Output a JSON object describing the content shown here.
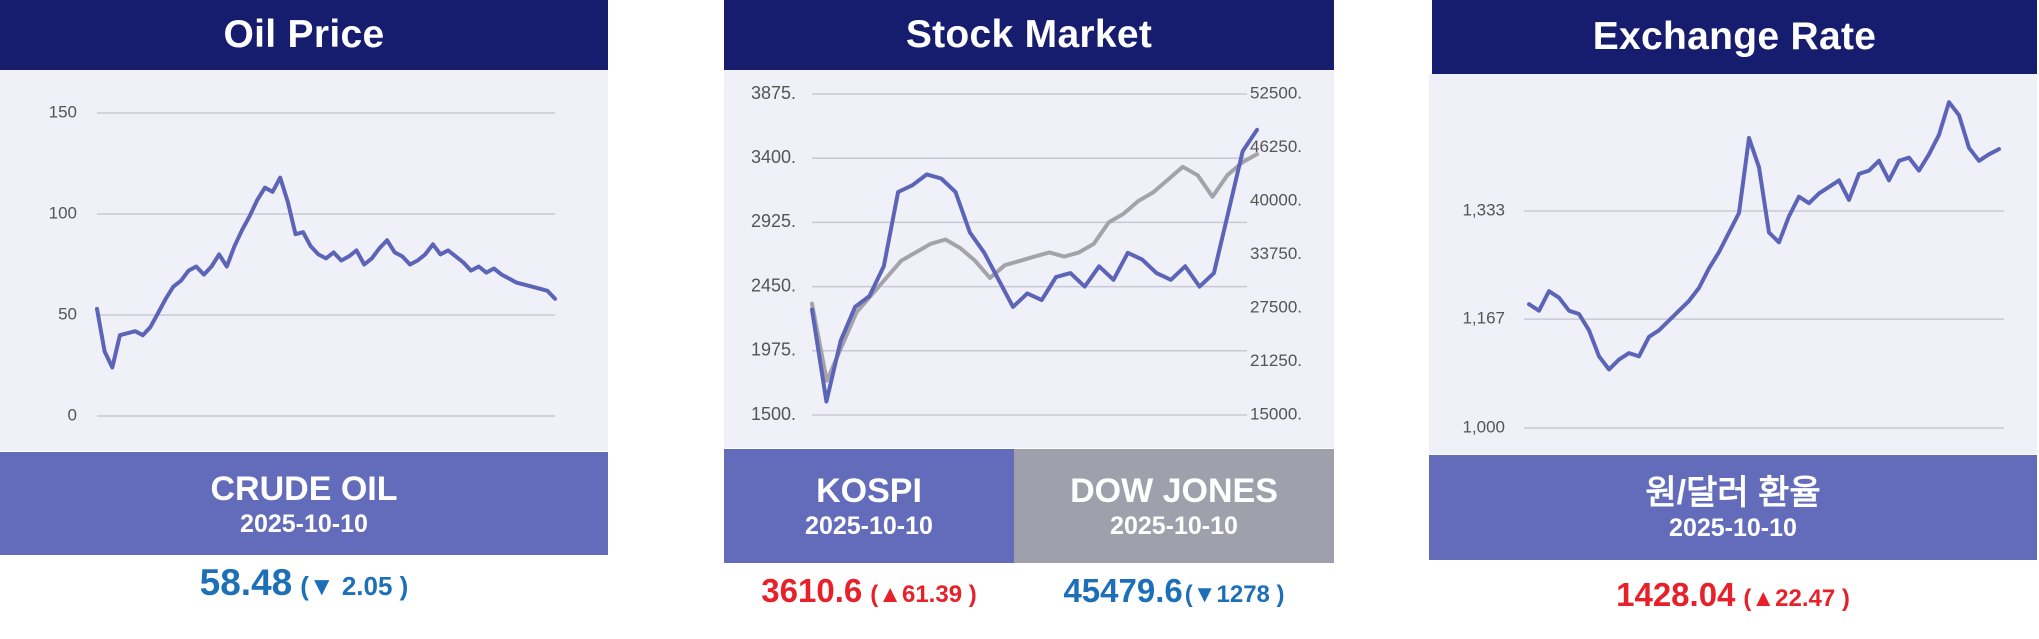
{
  "panels": {
    "oil": {
      "title": "Oil Price",
      "label": "CRUDE OIL",
      "date": "2025-10-10",
      "price": "58.48",
      "change": "(▼ 2.05 )"
    },
    "stock": {
      "title": "Stock Market",
      "kospi": {
        "label": "KOSPI",
        "date": "2025-10-10",
        "price": "3610.6",
        "change": "(▲61.39 )"
      },
      "dow": {
        "label": "DOW JONES",
        "date": "2025-10-10",
        "price": "45479.6",
        "change": "(▼1278 )"
      }
    },
    "fx": {
      "title": "Exchange Rate",
      "label": "원/달러 환율",
      "date": "2025-10-10",
      "price": "1428.04",
      "change": "(▲22.47 )"
    }
  },
  "colors": {
    "header_bg": "#161c6e",
    "chart_bg": "#f0f0f8",
    "series_blue": "#5c64b8",
    "series_gray": "#a3a3a9",
    "up": "#e8202a",
    "down": "#1d6fb8"
  },
  "chart_data": [
    {
      "type": "line",
      "title": "Oil Price",
      "ylim": [
        0,
        150
      ],
      "yticks": [
        "0",
        "50",
        "100",
        "150"
      ],
      "grid": true,
      "series": [
        {
          "name": "CRUDE OIL",
          "color": "#5c64b8",
          "values": [
            53,
            32,
            24,
            40,
            41,
            42,
            40,
            44,
            51,
            58,
            64,
            67,
            72,
            74,
            70,
            74,
            80,
            74,
            84,
            92,
            99,
            107,
            113,
            111,
            118,
            106,
            90,
            91,
            84,
            80,
            78,
            81,
            77,
            79,
            82,
            75,
            78,
            83,
            87,
            81,
            79,
            75,
            77,
            80,
            85,
            80,
            82,
            79,
            76,
            72,
            74,
            71,
            73,
            70,
            68,
            66,
            65,
            64,
            63,
            62,
            58
          ]
        }
      ]
    },
    {
      "type": "line",
      "title": "Stock Market",
      "ylim_left": [
        1500,
        3875
      ],
      "ylim_right": [
        15000,
        52500
      ],
      "yticks_left": [
        "3875.",
        "3400.",
        "2925.",
        "2450.",
        "1975.",
        "1500."
      ],
      "yticks_right": [
        "52500.",
        "46250.",
        "40000.",
        "33750.",
        "27500.",
        "21250.",
        "15000."
      ],
      "grid": true,
      "series": [
        {
          "name": "KOSPI",
          "axis": "left",
          "color": "#5c64b8",
          "values": [
            2280,
            1600,
            2050,
            2300,
            2380,
            2600,
            3150,
            3200,
            3280,
            3250,
            3150,
            2850,
            2700,
            2500,
            2300,
            2400,
            2350,
            2520,
            2550,
            2450,
            2600,
            2500,
            2700,
            2650,
            2550,
            2500,
            2600,
            2450,
            2550,
            3000,
            3450,
            3610
          ]
        },
        {
          "name": "DOW JONES",
          "axis": "right",
          "color": "#a3a3a9",
          "values": [
            28000,
            19000,
            23000,
            27000,
            29000,
            31000,
            33000,
            34000,
            35000,
            35500,
            34500,
            33000,
            31000,
            32500,
            33000,
            33500,
            34000,
            33500,
            34000,
            35000,
            37500,
            38500,
            40000,
            41000,
            42500,
            44000,
            43000,
            40500,
            43000,
            44500,
            45480
          ]
        }
      ]
    },
    {
      "type": "line",
      "title": "Exchange Rate",
      "ylim": [
        1000,
        1540
      ],
      "yticks": [
        "1,000",
        "1,167",
        "1,333"
      ],
      "grid": true,
      "series": [
        {
          "name": "원/달러 환율",
          "color": "#5c64b8",
          "values": [
            1190,
            1180,
            1210,
            1200,
            1180,
            1175,
            1150,
            1110,
            1090,
            1105,
            1115,
            1110,
            1140,
            1150,
            1165,
            1180,
            1195,
            1215,
            1245,
            1270,
            1300,
            1330,
            1445,
            1400,
            1300,
            1285,
            1325,
            1355,
            1345,
            1360,
            1370,
            1380,
            1350,
            1390,
            1395,
            1410,
            1380,
            1410,
            1415,
            1395,
            1420,
            1450,
            1500,
            1480,
            1430,
            1410,
            1420,
            1428
          ]
        }
      ]
    }
  ]
}
